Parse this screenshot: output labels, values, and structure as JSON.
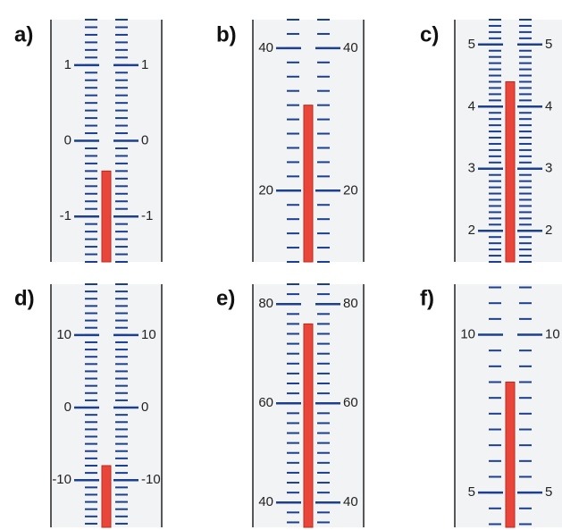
{
  "chart_data": [
    {
      "type": "thermometer",
      "title": "a)",
      "value": -0.4,
      "ylim": [
        -1.6,
        1.6
      ],
      "yticks": [
        -1,
        0,
        1
      ],
      "minor_tick_step": 0.1
    },
    {
      "type": "thermometer",
      "title": "b)",
      "value": 32,
      "ylim": [
        10,
        44
      ],
      "yticks": [
        20,
        40
      ],
      "minor_tick_step": 2
    },
    {
      "type": "thermometer",
      "title": "c)",
      "value": 4.4,
      "ylim": [
        1.5,
        5.4
      ],
      "yticks": [
        2,
        3,
        4,
        5
      ],
      "minor_tick_step": 0.1
    },
    {
      "type": "thermometer",
      "title": "d)",
      "value": -8,
      "ylim": [
        -16.5,
        17
      ],
      "yticks": [
        -10,
        0,
        10
      ],
      "minor_tick_step": 1
    },
    {
      "type": "thermometer",
      "title": "e)",
      "value": 76,
      "ylim": [
        35,
        84
      ],
      "yticks": [
        40,
        60,
        80
      ],
      "minor_tick_step": 2
    },
    {
      "type": "thermometer",
      "title": "f)",
      "value": 8.5,
      "ylim": [
        3.9,
        11.6
      ],
      "yticks": [
        5,
        10
      ],
      "minor_tick_step": 0.5
    }
  ]
}
